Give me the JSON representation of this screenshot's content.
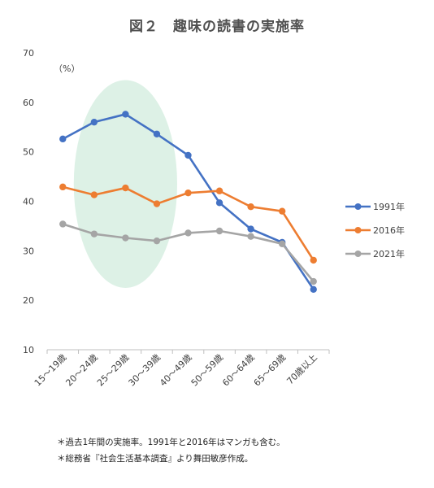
{
  "title": "図２　趣味の読書の実施率",
  "chart_data": {
    "type": "line",
    "unit_label": "（%）",
    "categories": [
      "15～19歳",
      "20～24歳",
      "25～29歳",
      "30～39歳",
      "40～49歳",
      "50～59歳",
      "60～64歳",
      "65～69歳",
      "70歳以上"
    ],
    "ylim": [
      10,
      70
    ],
    "yticks": [
      10,
      20,
      30,
      40,
      50,
      60,
      70
    ],
    "grid": false,
    "legend_position": "right",
    "series": [
      {
        "name": "1991年",
        "color": "#4472C4",
        "values": [
          52.6,
          56.0,
          57.6,
          53.6,
          49.3,
          39.7,
          34.4,
          31.7,
          22.2
        ]
      },
      {
        "name": "2016年",
        "color": "#ED7D31",
        "values": [
          42.9,
          41.3,
          42.7,
          39.5,
          41.7,
          42.1,
          38.9,
          38.0,
          28.1
        ]
      },
      {
        "name": "2021年",
        "color": "#A5A5A5",
        "values": [
          35.4,
          33.4,
          32.6,
          32.0,
          33.6,
          34.0,
          32.9,
          31.4,
          23.8
        ]
      }
    ],
    "highlight": {
      "shape": "ellipse",
      "color": "#DDF1E6",
      "categories": [
        "20～24歳",
        "25～29歳",
        "30～39歳"
      ]
    }
  },
  "notes": [
    "＊過去1年間の実施率。1991年と2016年はマンガも含む。",
    "＊総務省『社会生活基本調査』より舞田敏彦作成。"
  ]
}
